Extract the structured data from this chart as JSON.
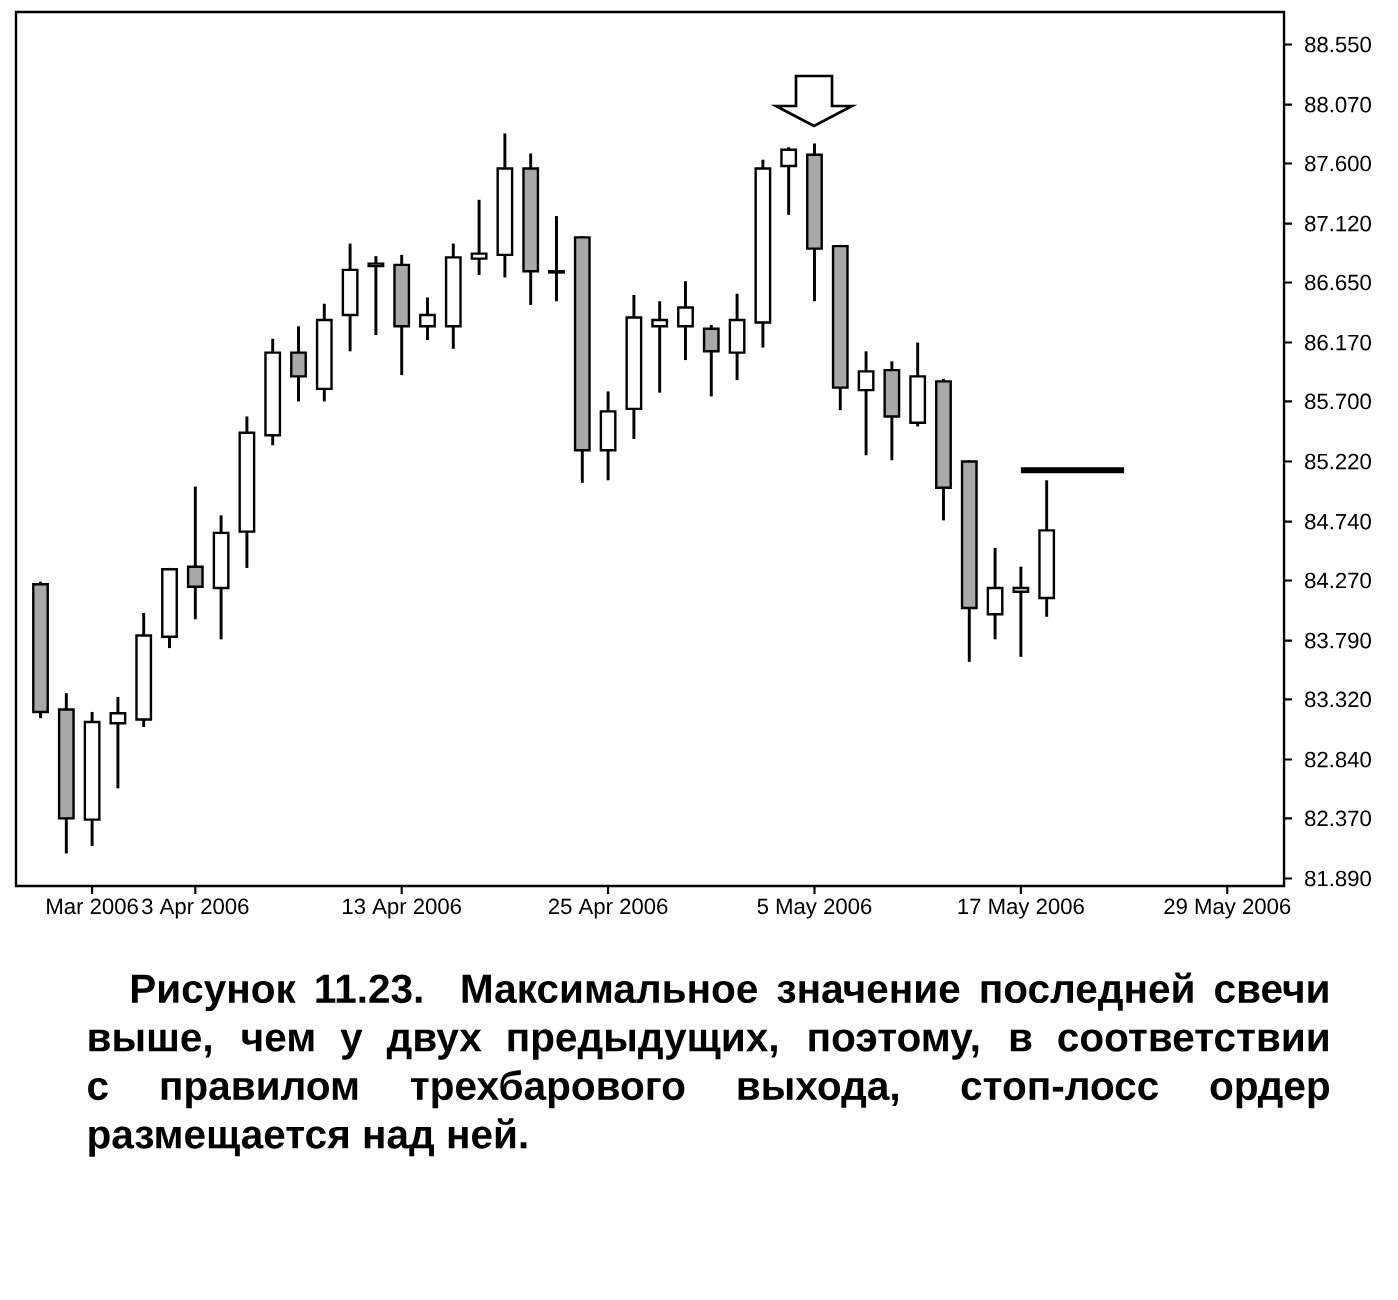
{
  "chart_data": {
    "type": "candlestick",
    "categories": [
      null,
      null,
      "Mar 2006",
      null,
      null,
      null,
      "3 Apr 2006",
      null,
      null,
      null,
      null,
      null,
      null,
      null,
      "13 Apr 2006",
      null,
      null,
      null,
      null,
      null,
      null,
      null,
      "25 Apr 2006",
      null,
      null,
      null,
      null,
      null,
      null,
      null,
      "5 May 2006",
      null,
      null,
      null,
      null,
      null,
      null,
      null,
      "17 May 2006",
      null,
      null,
      null,
      null,
      null,
      null,
      null,
      "29 May 2006",
      null,
      null
    ],
    "ohlc": [
      [
        84.24,
        84.26,
        83.17,
        83.22
      ],
      [
        83.24,
        83.37,
        82.09,
        82.37
      ],
      [
        82.36,
        83.22,
        82.15,
        83.14
      ],
      [
        83.13,
        83.34,
        82.61,
        83.21
      ],
      [
        83.16,
        84.01,
        83.1,
        83.83
      ],
      [
        83.82,
        84.37,
        83.73,
        84.36
      ],
      [
        84.38,
        85.02,
        83.96,
        84.22
      ],
      [
        84.21,
        84.79,
        83.8,
        84.65
      ],
      [
        84.66,
        85.58,
        84.37,
        85.45
      ],
      [
        85.43,
        86.2,
        85.35,
        86.09
      ],
      [
        86.09,
        86.3,
        85.7,
        85.9
      ],
      [
        85.8,
        86.48,
        85.7,
        86.35
      ],
      [
        86.39,
        86.96,
        86.1,
        86.75
      ],
      [
        86.78,
        86.86,
        86.23,
        86.8
      ],
      [
        86.79,
        86.87,
        85.91,
        86.3
      ],
      [
        86.3,
        86.53,
        86.19,
        86.39
      ],
      [
        86.3,
        86.96,
        86.12,
        86.85
      ],
      [
        86.84,
        87.31,
        86.71,
        86.88
      ],
      [
        86.87,
        87.84,
        86.69,
        87.56
      ],
      [
        87.56,
        87.68,
        86.47,
        86.74
      ],
      [
        86.74,
        87.18,
        86.5,
        86.73
      ],
      [
        87.01,
        87.02,
        85.05,
        85.31
      ],
      [
        85.31,
        85.78,
        85.07,
        85.62
      ],
      [
        85.64,
        86.55,
        85.4,
        86.37
      ],
      [
        86.3,
        86.5,
        85.77,
        86.35
      ],
      [
        86.3,
        86.66,
        86.03,
        86.45
      ],
      [
        86.28,
        86.31,
        85.74,
        86.1
      ],
      [
        86.09,
        86.56,
        85.87,
        86.35
      ],
      [
        86.33,
        87.63,
        86.13,
        87.56
      ],
      [
        87.58,
        87.73,
        87.19,
        87.71
      ],
      [
        87.67,
        87.76,
        86.5,
        86.92
      ],
      [
        86.94,
        86.95,
        85.63,
        85.81
      ],
      [
        85.79,
        86.1,
        85.27,
        85.94
      ],
      [
        85.95,
        86.02,
        85.23,
        85.58
      ],
      [
        85.53,
        86.17,
        85.5,
        85.9
      ],
      [
        85.86,
        85.88,
        84.75,
        85.01
      ],
      [
        85.22,
        85.23,
        83.62,
        84.05
      ],
      [
        84.0,
        84.53,
        83.8,
        84.21
      ],
      [
        84.18,
        84.38,
        83.66,
        84.21
      ],
      [
        84.13,
        85.07,
        83.98,
        84.67
      ],
      null,
      null,
      null,
      null,
      null,
      null,
      null,
      null,
      null
    ],
    "colors": [
      "#a8a8a8",
      "#a8a8a8",
      "#ffffff",
      "#ffffff",
      "#ffffff",
      "#ffffff",
      "#a8a8a8",
      "#ffffff",
      "#ffffff",
      "#ffffff",
      "#a8a8a8",
      "#ffffff",
      "#ffffff",
      "#ffffff",
      "#a8a8a8",
      "#ffffff",
      "#ffffff",
      "#ffffff",
      "#ffffff",
      "#a8a8a8",
      "#a8a8a8",
      "#a8a8a8",
      "#ffffff",
      "#ffffff",
      "#ffffff",
      "#ffffff",
      "#a8a8a8",
      "#ffffff",
      "#ffffff",
      "#ffffff",
      "#a8a8a8",
      "#a8a8a8",
      "#ffffff",
      "#a8a8a8",
      "#ffffff",
      "#a8a8a8",
      "#a8a8a8",
      "#ffffff",
      "#ffffff",
      "#ffffff",
      null,
      null,
      null,
      null,
      null,
      null,
      null,
      null,
      null
    ],
    "series": [
      {
        "type": "line",
        "color": "#000000",
        "values": [
          null,
          null,
          null,
          null,
          null,
          null,
          null,
          null,
          null,
          null,
          null,
          null,
          null,
          null,
          null,
          null,
          null,
          null,
          null,
          null,
          null,
          null,
          null,
          null,
          null,
          null,
          null,
          null,
          null,
          null,
          null,
          null,
          null,
          null,
          null,
          null,
          null,
          null,
          85.15,
          85.15,
          85.15,
          85.15,
          85.15,
          null,
          null,
          null,
          null,
          null,
          null
        ]
      }
    ],
    "ylim": [
      81.83,
      88.81
    ],
    "yticks": [
      {
        "value": 88.55,
        "label": "88.550"
      },
      {
        "value": 88.07,
        "label": "88.070"
      },
      {
        "value": 87.6,
        "label": "87.600"
      },
      {
        "value": 87.12,
        "label": "87.120"
      },
      {
        "value": 86.65,
        "label": "86.650"
      },
      {
        "value": 86.17,
        "label": "86.170"
      },
      {
        "value": 85.7,
        "label": "85.700"
      },
      {
        "value": 85.22,
        "label": "85.220"
      },
      {
        "value": 84.74,
        "label": "84.740"
      },
      {
        "value": 84.27,
        "label": "84.270"
      },
      {
        "value": 83.79,
        "label": "83.790"
      },
      {
        "value": 83.32,
        "label": "83.320"
      },
      {
        "value": 82.84,
        "label": "82.840"
      },
      {
        "value": 82.37,
        "label": "82.370"
      },
      {
        "value": 81.89,
        "label": "81.890"
      }
    ],
    "annotations": [
      "Рисунок 11.23. Максимальное значение последней свечи выше, чем у двух предыдущих, поэтому, в соответствии с правилом трехбарового выхода, стоп-лосс ордер размещается над ней."
    ]
  }
}
